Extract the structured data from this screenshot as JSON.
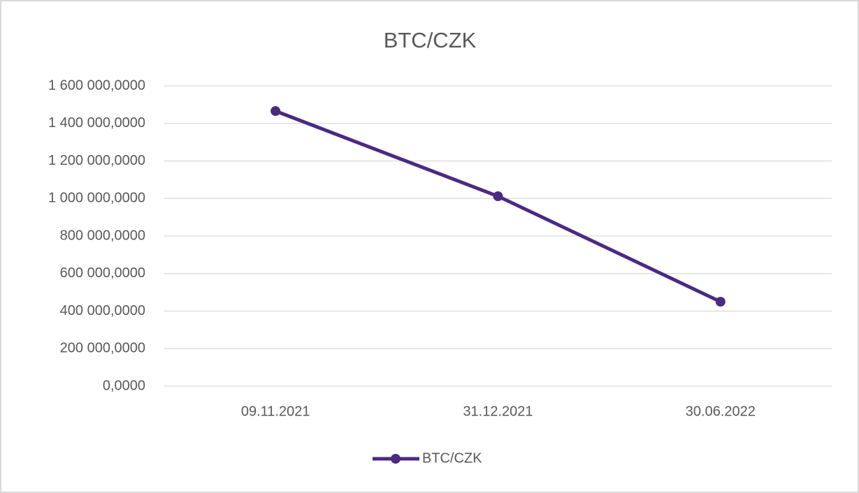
{
  "chart_data": {
    "type": "line",
    "title": "BTC/CZK",
    "categories": [
      "09.11.2021",
      "31.12.2021",
      "30.06.2022"
    ],
    "series": [
      {
        "name": "BTC/CZK",
        "color": "#4b2a82",
        "values": [
          1466000,
          1012000,
          450000
        ]
      }
    ],
    "ylim": [
      0,
      1600000
    ],
    "yticks": [
      {
        "value": 0,
        "label": "0,0000"
      },
      {
        "value": 200000,
        "label": "200 000,0000"
      },
      {
        "value": 400000,
        "label": "400 000,0000"
      },
      {
        "value": 600000,
        "label": "600 000,0000"
      },
      {
        "value": 800000,
        "label": "800 000,0000"
      },
      {
        "value": 1000000,
        "label": "1 000 000,0000"
      },
      {
        "value": 1200000,
        "label": "1 200 000,0000"
      },
      {
        "value": 1400000,
        "label": "1 400 000,0000"
      },
      {
        "value": 1600000,
        "label": "1 600 000,0000"
      }
    ],
    "grid": true,
    "legend": "bottom"
  }
}
